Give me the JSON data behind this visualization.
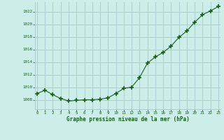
{
  "hours": [
    0,
    1,
    2,
    3,
    4,
    5,
    6,
    7,
    8,
    9,
    10,
    11,
    12,
    13,
    14,
    15,
    16,
    17,
    18,
    19,
    20,
    21,
    22,
    23
  ],
  "pressure": [
    1009.0,
    1009.5,
    1008.8,
    1008.2,
    1007.8,
    1007.9,
    1008.0,
    1008.0,
    1008.1,
    1008.3,
    1009.0,
    1009.8,
    1010.0,
    1011.5,
    1013.8,
    1014.8,
    1015.5,
    1016.5,
    1017.9,
    1018.9,
    1020.3,
    1021.5,
    1022.1,
    1022.8
  ],
  "line_color": "#1a5c1a",
  "marker_color": "#1a5c1a",
  "bg_color": "#cceee8",
  "grid_color": "#aacfcf",
  "tick_label_color": "#1a5c1a",
  "xlabel": "Graphe pression niveau de la mer (hPa)",
  "xlabel_color": "#1a5c1a",
  "ylim": [
    1006.5,
    1023.5
  ],
  "yticks": [
    1008,
    1010,
    1012,
    1014,
    1016,
    1018,
    1020,
    1022
  ],
  "ytick_labels": [
    "1008",
    "1010",
    "1012",
    "1014",
    "1016",
    "1018",
    "1020",
    "1022"
  ],
  "xlim": [
    -0.3,
    23.3
  ],
  "figsize": [
    3.2,
    2.0
  ],
  "dpi": 100
}
